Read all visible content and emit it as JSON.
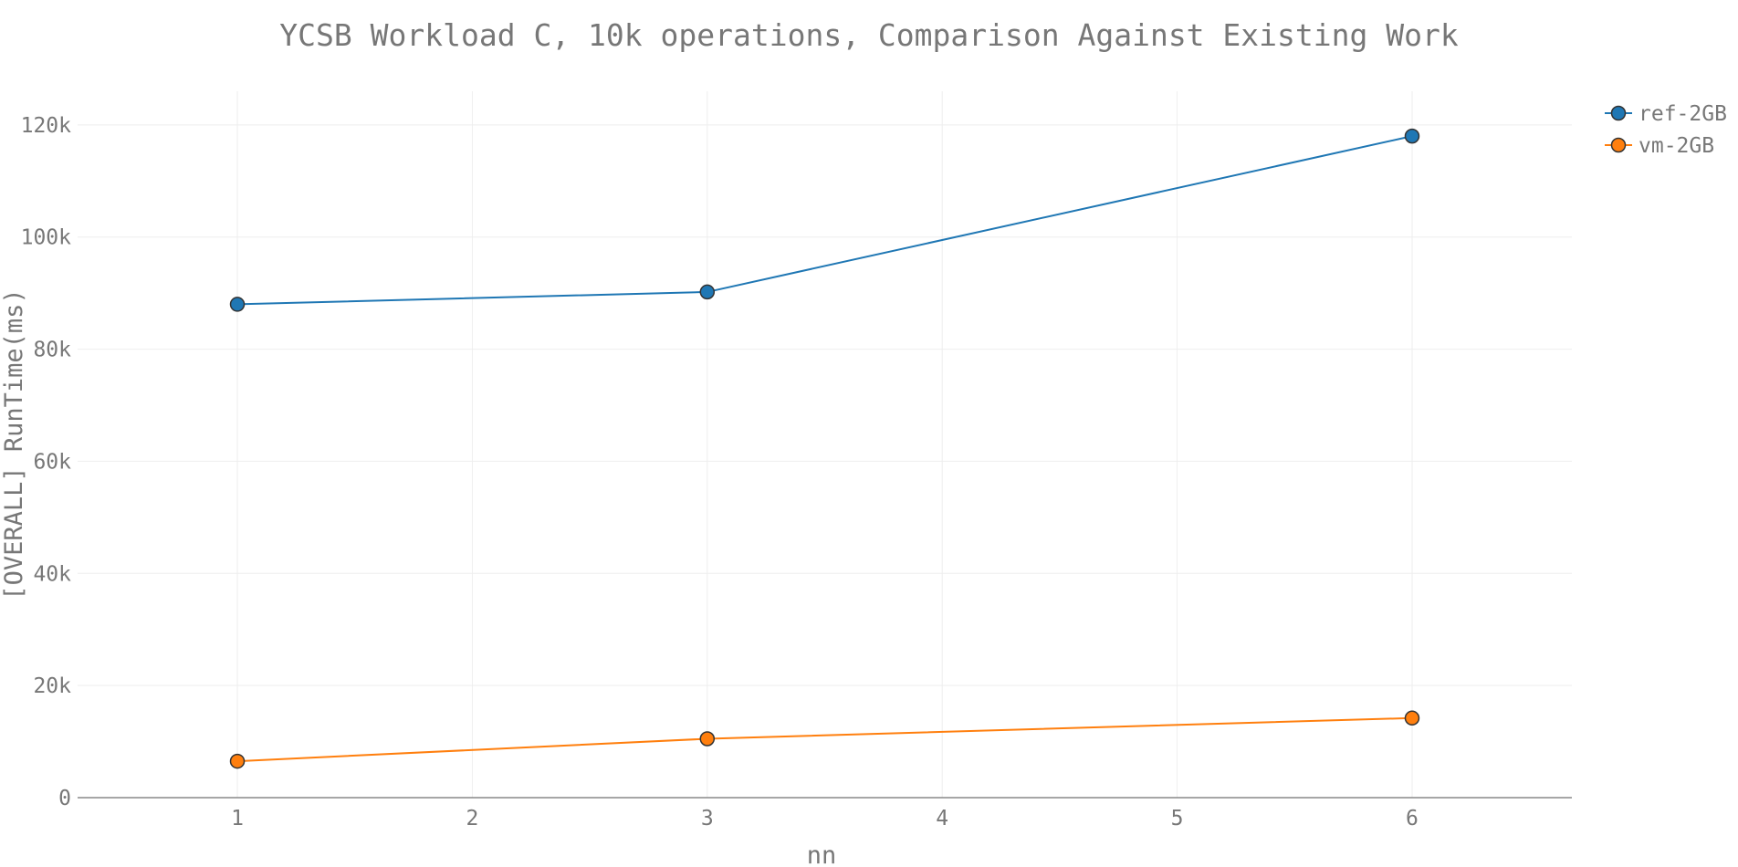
{
  "chart_data": {
    "type": "line",
    "title": "YCSB Workload C, 10k operations, Comparison Against Existing Work",
    "xlabel": "nn",
    "ylabel": "[OVERALL] RunTime(ms)",
    "xlim": [
      0.32,
      6.68
    ],
    "ylim": [
      0,
      126000
    ],
    "x_ticks": [
      1,
      2,
      3,
      4,
      5,
      6
    ],
    "y_ticks": [
      0,
      20000,
      40000,
      60000,
      80000,
      100000,
      120000
    ],
    "x_tick_labels": [
      "1",
      "2",
      "3",
      "4",
      "5",
      "6"
    ],
    "y_tick_labels": [
      "0",
      "20k",
      "40k",
      "60k",
      "80k",
      "100k",
      "120k"
    ],
    "grid": true,
    "legend_position": "top-right",
    "series": [
      {
        "name": "ref-2GB",
        "color": "#1f77b4",
        "x": [
          1,
          3,
          6
        ],
        "y": [
          88000,
          90200,
          118000
        ]
      },
      {
        "name": "vm-2GB",
        "color": "#ff7f0e",
        "x": [
          1,
          3,
          6
        ],
        "y": [
          6500,
          10500,
          14200
        ]
      }
    ]
  }
}
